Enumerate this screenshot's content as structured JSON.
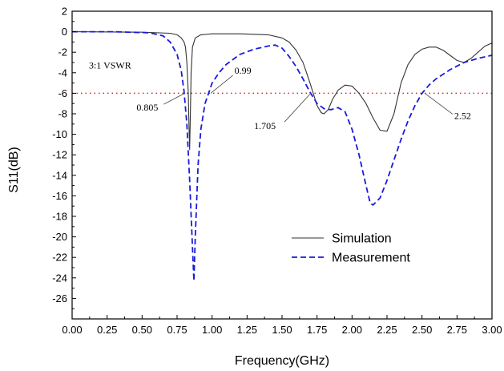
{
  "chart_data": {
    "type": "line",
    "title": "",
    "xlabel": "Frequency(GHz)",
    "ylabel": "S11(dB)",
    "xlim": [
      0.0,
      3.0
    ],
    "ylim": [
      -28,
      2
    ],
    "x_ticks": [
      "0.00",
      "0.25",
      "0.50",
      "0.75",
      "1.00",
      "1.25",
      "1.50",
      "1.75",
      "2.00",
      "2.25",
      "2.50",
      "2.75",
      "3.00"
    ],
    "y_ticks": [
      "2",
      "0",
      "-2",
      "-4",
      "-6",
      "-8",
      "-10",
      "-12",
      "-14",
      "-16",
      "-18",
      "-20",
      "-22",
      "-24",
      "-26"
    ],
    "grid": false,
    "legend_position": "bottom-right",
    "series": [
      {
        "name": "Simulation",
        "color": "#333333",
        "style": "solid",
        "x": [
          0.0,
          0.5,
          0.7,
          0.75,
          0.78,
          0.8,
          0.81,
          0.82,
          0.83,
          0.835,
          0.84,
          0.845,
          0.85,
          0.86,
          0.88,
          0.92,
          1.0,
          1.2,
          1.4,
          1.5,
          1.55,
          1.6,
          1.65,
          1.7,
          1.75,
          1.78,
          1.8,
          1.83,
          1.86,
          1.9,
          1.95,
          2.0,
          2.05,
          2.1,
          2.15,
          2.2,
          2.25,
          2.3,
          2.35,
          2.4,
          2.45,
          2.5,
          2.55,
          2.6,
          2.65,
          2.7,
          2.75,
          2.8,
          2.85,
          2.9,
          2.95,
          3.0
        ],
        "y": [
          0.0,
          -0.05,
          -0.15,
          -0.3,
          -0.6,
          -1.0,
          -1.5,
          -3.0,
          -6.0,
          -9.0,
          -11.5,
          -8.0,
          -4.0,
          -1.5,
          -0.6,
          -0.3,
          -0.2,
          -0.2,
          -0.3,
          -0.6,
          -1.0,
          -1.8,
          -3.0,
          -5.0,
          -7.2,
          -7.9,
          -8.0,
          -7.6,
          -6.6,
          -5.7,
          -5.2,
          -5.3,
          -6.0,
          -7.0,
          -8.4,
          -9.6,
          -9.7,
          -8.0,
          -5.0,
          -3.2,
          -2.2,
          -1.7,
          -1.5,
          -1.5,
          -1.8,
          -2.3,
          -2.8,
          -3.0,
          -2.6,
          -2.0,
          -1.4,
          -1.1
        ]
      },
      {
        "name": "Measurement",
        "color": "#1a1adc",
        "style": "dashed",
        "x": [
          0.0,
          0.3,
          0.55,
          0.65,
          0.7,
          0.75,
          0.78,
          0.8,
          0.82,
          0.84,
          0.86,
          0.87,
          0.88,
          0.9,
          0.92,
          0.95,
          0.98,
          1.0,
          1.05,
          1.1,
          1.2,
          1.3,
          1.4,
          1.45,
          1.5,
          1.55,
          1.6,
          1.65,
          1.7,
          1.75,
          1.8,
          1.85,
          1.9,
          1.95,
          2.0,
          2.05,
          2.1,
          2.13,
          2.15,
          2.2,
          2.25,
          2.3,
          2.35,
          2.4,
          2.45,
          2.5,
          2.55,
          2.6,
          2.7,
          2.8,
          2.9,
          3.0
        ],
        "y": [
          0.0,
          0.0,
          -0.1,
          -0.4,
          -1.0,
          -2.2,
          -3.8,
          -5.8,
          -9.0,
          -14.5,
          -21.0,
          -24.3,
          -20.0,
          -13.0,
          -9.5,
          -7.0,
          -5.8,
          -5.0,
          -4.0,
          -3.2,
          -2.2,
          -1.7,
          -1.4,
          -1.3,
          -1.6,
          -2.4,
          -3.4,
          -4.6,
          -5.9,
          -7.0,
          -7.5,
          -7.6,
          -7.4,
          -7.8,
          -9.5,
          -12.0,
          -15.0,
          -16.7,
          -16.9,
          -16.2,
          -14.5,
          -12.5,
          -10.5,
          -8.7,
          -7.2,
          -6.0,
          -5.2,
          -4.6,
          -3.7,
          -3.0,
          -2.6,
          -2.3
        ]
      }
    ],
    "reference_line": {
      "y": -6,
      "color": "#e02020",
      "style": "dotted"
    },
    "annotations": [
      {
        "text": "3:1 VSWR",
        "x": 0.12,
        "y": -3.6
      },
      {
        "text": "0.805",
        "x": 0.805,
        "y": -6,
        "label_x": 0.46,
        "label_y": -7.7,
        "anchor": "start"
      },
      {
        "text": "0.99",
        "x": 0.99,
        "y": -6,
        "label_x": 1.16,
        "label_y": -4.1,
        "anchor": "start"
      },
      {
        "text": "1.705",
        "x": 1.705,
        "y": -6,
        "label_x": 1.3,
        "label_y": -9.5,
        "anchor": "start"
      },
      {
        "text": "2.52",
        "x": 2.52,
        "y": -6,
        "label_x": 2.73,
        "label_y": -8.5,
        "anchor": "start"
      }
    ]
  }
}
